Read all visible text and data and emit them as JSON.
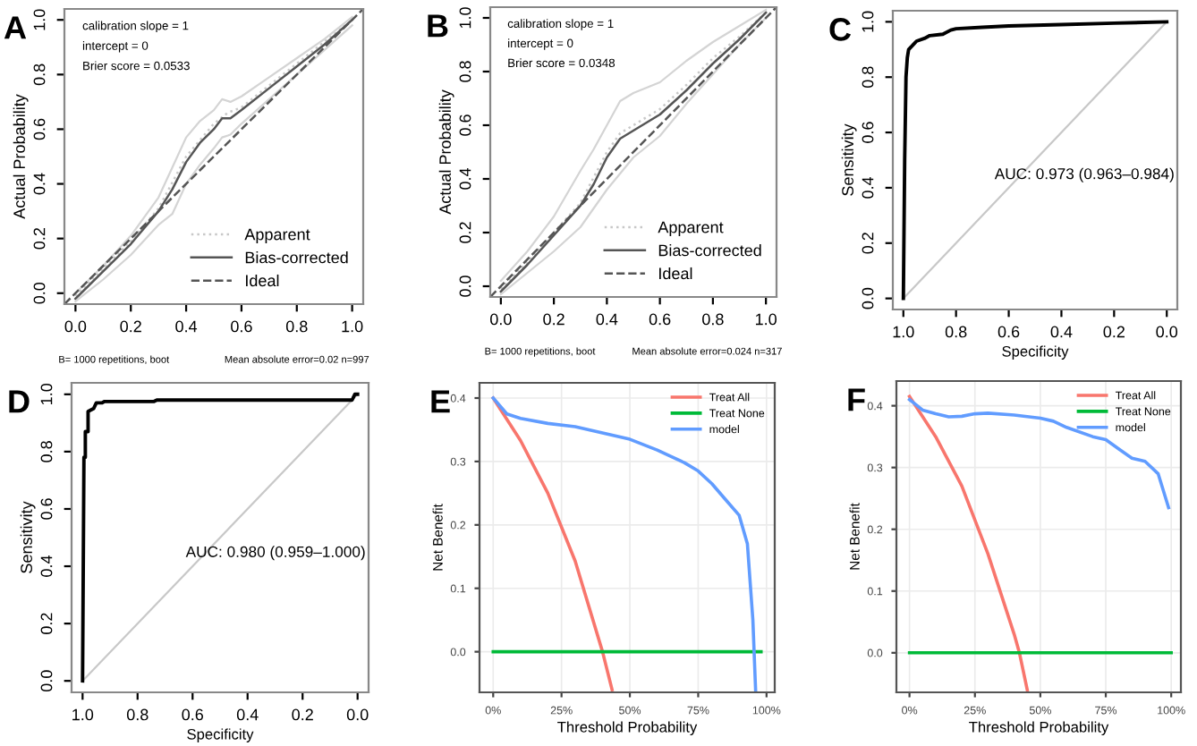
{
  "chart_data": [
    {
      "type": "line",
      "title": "A",
      "ylabel": "Actual Probability",
      "legend": "bottom right",
      "grid": false,
      "annotations": [
        "calibration slope = 1",
        "intercept = 0",
        "Brier score = 0.0533",
        "B= 1000 repetitions, boot",
        "Mean absolute error=0.02 n=997"
      ],
      "xlim": [
        -0.04,
        1.04
      ],
      "ylim": [
        -0.04,
        1.04
      ],
      "xticks": [
        {
          "value": 0,
          "label": "0.0"
        },
        {
          "value": 0.2,
          "label": "0.2"
        },
        {
          "value": 0.4,
          "label": "0.4"
        },
        {
          "value": 0.6,
          "label": "0.6"
        },
        {
          "value": 0.8,
          "label": "0.8"
        },
        {
          "value": 1,
          "label": "1.0"
        }
      ],
      "yticks": [
        {
          "value": 0,
          "label": "0.0"
        },
        {
          "value": 0.2,
          "label": "0.2"
        },
        {
          "value": 0.4,
          "label": "0.4"
        },
        {
          "value": 0.6,
          "label": "0.6"
        },
        {
          "value": 0.8,
          "label": "0.8"
        },
        {
          "value": 1,
          "label": "1.0"
        }
      ],
      "series": [
        {
          "name": "Apparent",
          "color": "#c8c8c8",
          "line_style": "dotted",
          "x": [
            0,
            0.1,
            0.2,
            0.3,
            0.4,
            0.5,
            0.55,
            0.6,
            0.7,
            0.8,
            0.9,
            1
          ],
          "values": [
            -0.01,
            0.09,
            0.19,
            0.31,
            0.5,
            0.62,
            0.66,
            0.68,
            0.76,
            0.84,
            0.92,
            1.0
          ]
        },
        {
          "name": "Bias-corrected",
          "color": "#555555",
          "line_style": "solid",
          "x": [
            0,
            0.1,
            0.2,
            0.3,
            0.35,
            0.4,
            0.45,
            0.5,
            0.53,
            0.56,
            0.6,
            0.7,
            0.8,
            0.9,
            1
          ],
          "values": [
            -0.02,
            0.08,
            0.18,
            0.3,
            0.38,
            0.48,
            0.55,
            0.6,
            0.64,
            0.64,
            0.67,
            0.75,
            0.83,
            0.91,
            1.0
          ]
        },
        {
          "color": "#d4d4d4",
          "line_style": "solid",
          "x": [
            0,
            0.1,
            0.2,
            0.3,
            0.35,
            0.4,
            0.45,
            0.5,
            0.53,
            0.56,
            0.6,
            0.7,
            0.8,
            0.9,
            1
          ],
          "values": [
            -0.03,
            0.05,
            0.14,
            0.25,
            0.29,
            0.4,
            0.47,
            0.53,
            0.57,
            0.58,
            0.62,
            0.71,
            0.8,
            0.89,
            0.98
          ]
        },
        {
          "color": "#d4d4d4",
          "line_style": "solid",
          "x": [
            0,
            0.1,
            0.2,
            0.3,
            0.35,
            0.4,
            0.45,
            0.5,
            0.53,
            0.56,
            0.6,
            0.7,
            0.8,
            0.9,
            1
          ],
          "values": [
            0.0,
            0.1,
            0.21,
            0.35,
            0.46,
            0.57,
            0.63,
            0.67,
            0.71,
            0.7,
            0.72,
            0.79,
            0.86,
            0.93,
            1.01
          ]
        },
        {
          "name": "Ideal",
          "color": "#555555",
          "line_style": "dashed",
          "x": [
            -0.04,
            1.04
          ],
          "values": [
            -0.04,
            1.04
          ]
        }
      ]
    },
    {
      "type": "line",
      "title": "B",
      "ylabel": "Actual Probability",
      "legend": "bottom right",
      "grid": false,
      "annotations": [
        "calibration slope = 1",
        "intercept = 0",
        "Brier score = 0.0348",
        "B= 1000 repetitions, boot",
        "Mean absolute error=0.024 n=317"
      ],
      "xlim": [
        -0.04,
        1.04
      ],
      "ylim": [
        -0.04,
        1.04
      ],
      "xticks": [
        {
          "value": 0,
          "label": "0.0"
        },
        {
          "value": 0.2,
          "label": "0.2"
        },
        {
          "value": 0.4,
          "label": "0.4"
        },
        {
          "value": 0.6,
          "label": "0.6"
        },
        {
          "value": 0.8,
          "label": "0.8"
        },
        {
          "value": 1,
          "label": "1.0"
        }
      ],
      "yticks": [
        {
          "value": 0,
          "label": "0.0"
        },
        {
          "value": 0.2,
          "label": "0.2"
        },
        {
          "value": 0.4,
          "label": "0.4"
        },
        {
          "value": 0.6,
          "label": "0.6"
        },
        {
          "value": 0.8,
          "label": "0.8"
        },
        {
          "value": 1,
          "label": "1.0"
        }
      ],
      "series": [
        {
          "name": "Apparent",
          "color": "#c8c8c8",
          "line_style": "dotted",
          "x": [
            0,
            0.1,
            0.2,
            0.3,
            0.4,
            0.45,
            0.5,
            0.6,
            0.7,
            0.8,
            0.9,
            1
          ],
          "values": [
            -0.01,
            0.09,
            0.2,
            0.31,
            0.5,
            0.57,
            0.6,
            0.66,
            0.75,
            0.85,
            0.93,
            1.02
          ]
        },
        {
          "name": "Bias-corrected",
          "color": "#555555",
          "line_style": "solid",
          "x": [
            0,
            0.1,
            0.2,
            0.3,
            0.35,
            0.4,
            0.45,
            0.5,
            0.6,
            0.7,
            0.8,
            0.9,
            1
          ],
          "values": [
            -0.02,
            0.08,
            0.19,
            0.3,
            0.38,
            0.48,
            0.55,
            0.58,
            0.64,
            0.73,
            0.83,
            0.92,
            1.02
          ]
        },
        {
          "color": "#d4d4d4",
          "line_style": "solid",
          "x": [
            0,
            0.1,
            0.2,
            0.3,
            0.35,
            0.4,
            0.45,
            0.5,
            0.6,
            0.7,
            0.8,
            0.9,
            1
          ],
          "values": [
            -0.03,
            0.05,
            0.13,
            0.22,
            0.29,
            0.36,
            0.42,
            0.48,
            0.56,
            0.68,
            0.79,
            0.9,
            1.0
          ]
        },
        {
          "color": "#d4d4d4",
          "line_style": "solid",
          "x": [
            0,
            0.1,
            0.2,
            0.3,
            0.35,
            0.4,
            0.45,
            0.5,
            0.6,
            0.7,
            0.8,
            0.9,
            1
          ],
          "values": [
            0.02,
            0.13,
            0.26,
            0.43,
            0.51,
            0.6,
            0.69,
            0.72,
            0.76,
            0.84,
            0.91,
            0.97,
            1.03
          ]
        },
        {
          "name": "Ideal",
          "color": "#555555",
          "line_style": "dashed",
          "x": [
            -0.04,
            1.04
          ],
          "values": [
            -0.04,
            1.04
          ]
        }
      ]
    },
    {
      "type": "line",
      "title": "C",
      "xlabel": "Specificity",
      "ylabel": "Sensitivity",
      "legend": false,
      "grid": false,
      "annotations": [
        "AUC: 0.973 (0.963–0.984)"
      ],
      "xlim": [
        1.04,
        -0.04
      ],
      "ylim": [
        -0.04,
        1.04
      ],
      "xticks": [
        {
          "value": 1,
          "label": "1.0"
        },
        {
          "value": 0.8,
          "label": "0.8"
        },
        {
          "value": 0.6,
          "label": "0.6"
        },
        {
          "value": 0.4,
          "label": "0.4"
        },
        {
          "value": 0.2,
          "label": "0.2"
        },
        {
          "value": 0,
          "label": "0.0"
        }
      ],
      "yticks": [
        {
          "value": 0,
          "label": "0.0"
        },
        {
          "value": 0.2,
          "label": "0.2"
        },
        {
          "value": 0.4,
          "label": "0.4"
        },
        {
          "value": 0.6,
          "label": "0.6"
        },
        {
          "value": 0.8,
          "label": "0.8"
        },
        {
          "value": 1,
          "label": "1.0"
        }
      ],
      "series": [
        {
          "color": "#c8c8c8",
          "line_style": "solid",
          "x": [
            1,
            0
          ],
          "values": [
            0,
            1
          ]
        },
        {
          "color": "#000000",
          "line_style": "solid",
          "x": [
            1,
            0.995,
            0.99,
            0.985,
            0.98,
            0.96,
            0.95,
            0.92,
            0.9,
            0.85,
            0.82,
            0.8,
            0.7,
            0.6,
            0.4,
            0.2,
            0
          ],
          "values": [
            0,
            0.5,
            0.8,
            0.87,
            0.9,
            0.92,
            0.93,
            0.94,
            0.95,
            0.955,
            0.97,
            0.975,
            0.98,
            0.985,
            0.99,
            0.995,
            1
          ]
        }
      ]
    },
    {
      "type": "line",
      "title": "D",
      "xlabel": "Specificity",
      "ylabel": "Sensitivity",
      "legend": false,
      "grid": false,
      "annotations": [
        "AUC: 0.980 (0.959–1.000)"
      ],
      "xlim": [
        1.04,
        -0.04
      ],
      "ylim": [
        -0.04,
        1.04
      ],
      "xticks": [
        {
          "value": 1,
          "label": "1.0"
        },
        {
          "value": 0.8,
          "label": "0.8"
        },
        {
          "value": 0.6,
          "label": "0.6"
        },
        {
          "value": 0.4,
          "label": "0.4"
        },
        {
          "value": 0.2,
          "label": "0.2"
        },
        {
          "value": 0,
          "label": "0.0"
        }
      ],
      "yticks": [
        {
          "value": 0,
          "label": "0.0"
        },
        {
          "value": 0.2,
          "label": "0.2"
        },
        {
          "value": 0.4,
          "label": "0.4"
        },
        {
          "value": 0.6,
          "label": "0.6"
        },
        {
          "value": 0.8,
          "label": "0.8"
        },
        {
          "value": 1,
          "label": "1.0"
        }
      ],
      "series": [
        {
          "color": "#c8c8c8",
          "line_style": "solid",
          "x": [
            1,
            0
          ],
          "values": [
            0,
            1
          ]
        },
        {
          "color": "#000000",
          "line_style": "solid",
          "x": [
            1,
            0.995,
            0.99,
            0.99,
            0.98,
            0.98,
            0.96,
            0.95,
            0.93,
            0.92,
            0.74,
            0.73,
            0.02,
            0.01,
            0
          ],
          "values": [
            0,
            0.78,
            0.78,
            0.87,
            0.87,
            0.94,
            0.95,
            0.97,
            0.97,
            0.975,
            0.975,
            0.98,
            0.98,
            1.0,
            1.0
          ]
        }
      ]
    },
    {
      "type": "line",
      "title": "E",
      "xlabel": "Threshold Probability",
      "ylabel": "Net Benefit",
      "legend": "top right",
      "grid": true,
      "xlim": [
        -0.05,
        1.03
      ],
      "ylim": [
        -0.064,
        0.424
      ],
      "xticks": [
        {
          "value": 0,
          "label": "0%"
        },
        {
          "value": 0.25,
          "label": "25%"
        },
        {
          "value": 0.5,
          "label": "50%"
        },
        {
          "value": 0.75,
          "label": "75%"
        },
        {
          "value": 1,
          "label": "100%"
        }
      ],
      "yticks": [
        {
          "value": 0,
          "label": "0.0"
        },
        {
          "value": 0.1,
          "label": "0.1"
        },
        {
          "value": 0.2,
          "label": "0.2"
        },
        {
          "value": 0.3,
          "label": "0.3"
        },
        {
          "value": 0.4,
          "label": "0.4"
        }
      ],
      "series": [
        {
          "name": "Treat All",
          "color": "#f8766d",
          "line_style": "solid",
          "x": [
            0,
            0.1,
            0.2,
            0.3,
            0.4,
            0.435
          ],
          "values": [
            0.4,
            0.333,
            0.25,
            0.143,
            0,
            -0.06
          ]
        },
        {
          "name": "Treat None",
          "color": "#00ba38",
          "line_style": "solid",
          "x": [
            0,
            0.98
          ],
          "values": [
            0,
            0
          ]
        },
        {
          "name": "model",
          "color": "#619cff",
          "line_style": "solid",
          "x": [
            0,
            0.05,
            0.1,
            0.2,
            0.3,
            0.4,
            0.5,
            0.6,
            0.7,
            0.75,
            0.8,
            0.85,
            0.9,
            0.93,
            0.95,
            0.96
          ],
          "values": [
            0.4,
            0.375,
            0.368,
            0.36,
            0.355,
            0.345,
            0.335,
            0.318,
            0.298,
            0.285,
            0.265,
            0.24,
            0.215,
            0.17,
            0.05,
            -0.06
          ]
        }
      ]
    },
    {
      "type": "line",
      "title": "F",
      "xlabel": "Threshold Probability",
      "ylabel": "Net Benefit",
      "legend": "top right",
      "grid": true,
      "xlim": [
        -0.05,
        1.037
      ],
      "ylim": [
        -0.064,
        0.44
      ],
      "xticks": [
        {
          "value": 0,
          "label": "0%"
        },
        {
          "value": 0.25,
          "label": "25%"
        },
        {
          "value": 0.5,
          "label": "50%"
        },
        {
          "value": 0.75,
          "label": "75%"
        },
        {
          "value": 1,
          "label": "100%"
        }
      ],
      "yticks": [
        {
          "value": 0,
          "label": "0.0"
        },
        {
          "value": 0.1,
          "label": "0.1"
        },
        {
          "value": 0.2,
          "label": "0.2"
        },
        {
          "value": 0.3,
          "label": "0.3"
        },
        {
          "value": 0.4,
          "label": "0.4"
        }
      ],
      "series": [
        {
          "name": "Treat All",
          "color": "#f8766d",
          "line_style": "solid",
          "x": [
            0,
            0.1,
            0.2,
            0.3,
            0.4,
            0.42,
            0.45
          ],
          "values": [
            0.415,
            0.35,
            0.27,
            0.16,
            0.03,
            0,
            -0.06
          ]
        },
        {
          "name": "Treat None",
          "color": "#00ba38",
          "line_style": "solid",
          "x": [
            0,
            1
          ],
          "values": [
            0,
            0
          ]
        },
        {
          "name": "model",
          "color": "#619cff",
          "line_style": "solid",
          "x": [
            0,
            0.05,
            0.1,
            0.15,
            0.2,
            0.25,
            0.3,
            0.4,
            0.5,
            0.55,
            0.6,
            0.7,
            0.75,
            0.8,
            0.85,
            0.9,
            0.95,
            0.99
          ],
          "values": [
            0.41,
            0.393,
            0.387,
            0.382,
            0.383,
            0.387,
            0.388,
            0.385,
            0.38,
            0.375,
            0.365,
            0.35,
            0.345,
            0.33,
            0.315,
            0.31,
            0.29,
            0.235
          ]
        }
      ]
    }
  ]
}
